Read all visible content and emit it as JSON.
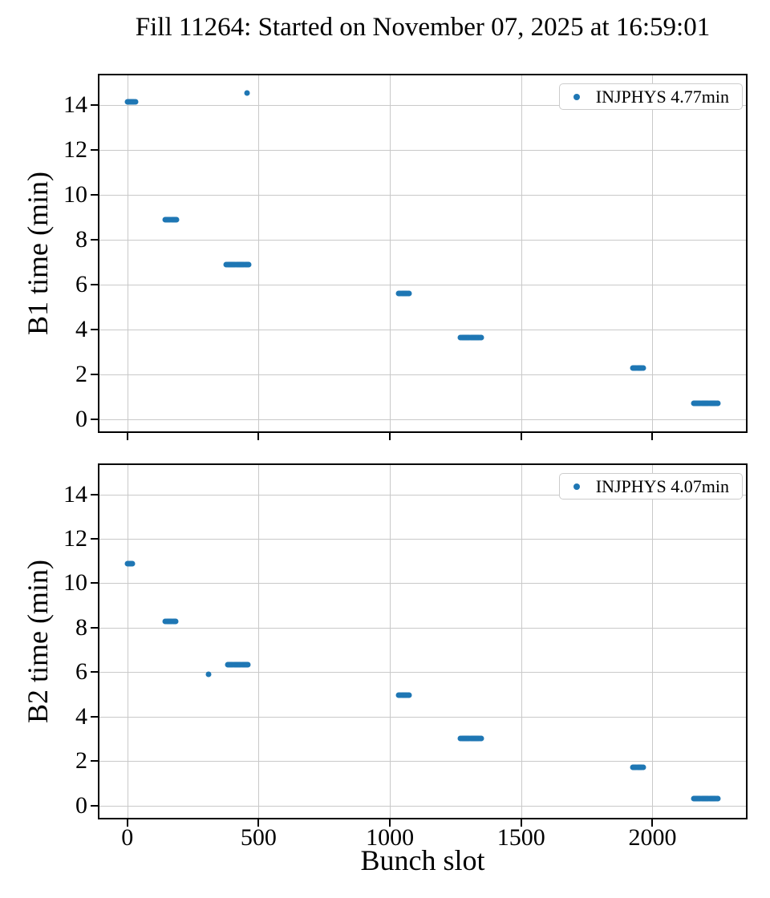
{
  "figure": {
    "title": "Fill 11264: Started on November 07, 2025 at 16:59:01",
    "xlabel": "Bunch slot",
    "marker_color": "#1f77b4",
    "grid_color": "#c9c9c9",
    "spine_color": "#000000",
    "legend_border_color": "#cccccc",
    "background_color": "#ffffff"
  },
  "chart_data": [
    {
      "type": "scatter",
      "ylabel": "B1 time (min)",
      "legend_label": "INJPHYS 4.77min",
      "legend_position": "upper right",
      "grid": true,
      "xlim": [
        -106,
        2356
      ],
      "ylim": [
        -0.55,
        15.32
      ],
      "xticks": [
        0,
        500,
        1000,
        1500,
        2000
      ],
      "yticks": [
        0,
        2,
        4,
        6,
        8,
        10,
        12,
        14
      ],
      "show_xtick_labels": false,
      "clusters": [
        {
          "x_start": 0,
          "x_end": 30,
          "y": 14.15,
          "n": 10
        },
        {
          "x_start": 456,
          "x_end": 456,
          "y": 14.55,
          "n": 1
        },
        {
          "x_start": 144,
          "x_end": 188,
          "y": 8.9,
          "n": 14
        },
        {
          "x_start": 378,
          "x_end": 462,
          "y": 6.9,
          "n": 26
        },
        {
          "x_start": 1034,
          "x_end": 1072,
          "y": 5.6,
          "n": 12
        },
        {
          "x_start": 1270,
          "x_end": 1347,
          "y": 3.62,
          "n": 24
        },
        {
          "x_start": 1924,
          "x_end": 1964,
          "y": 2.28,
          "n": 12
        },
        {
          "x_start": 2156,
          "x_end": 2248,
          "y": 0.7,
          "n": 28
        }
      ]
    },
    {
      "type": "scatter",
      "ylabel": "B2 time (min)",
      "legend_label": "INJPHYS 4.07min",
      "legend_position": "upper right",
      "grid": true,
      "xlim": [
        -106,
        2356
      ],
      "ylim": [
        -0.55,
        15.32
      ],
      "xticks": [
        0,
        500,
        1000,
        1500,
        2000
      ],
      "yticks": [
        0,
        2,
        4,
        6,
        8,
        10,
        12,
        14
      ],
      "show_xtick_labels": true,
      "clusters": [
        {
          "x_start": 0,
          "x_end": 20,
          "y": 10.9,
          "n": 8
        },
        {
          "x_start": 146,
          "x_end": 184,
          "y": 8.28,
          "n": 12
        },
        {
          "x_start": 308,
          "x_end": 308,
          "y": 5.92,
          "n": 1
        },
        {
          "x_start": 382,
          "x_end": 460,
          "y": 6.33,
          "n": 24
        },
        {
          "x_start": 1034,
          "x_end": 1072,
          "y": 4.97,
          "n": 12
        },
        {
          "x_start": 1270,
          "x_end": 1347,
          "y": 3.03,
          "n": 24
        },
        {
          "x_start": 1924,
          "x_end": 1964,
          "y": 1.72,
          "n": 12
        },
        {
          "x_start": 2156,
          "x_end": 2248,
          "y": 0.33,
          "n": 28
        }
      ]
    }
  ]
}
